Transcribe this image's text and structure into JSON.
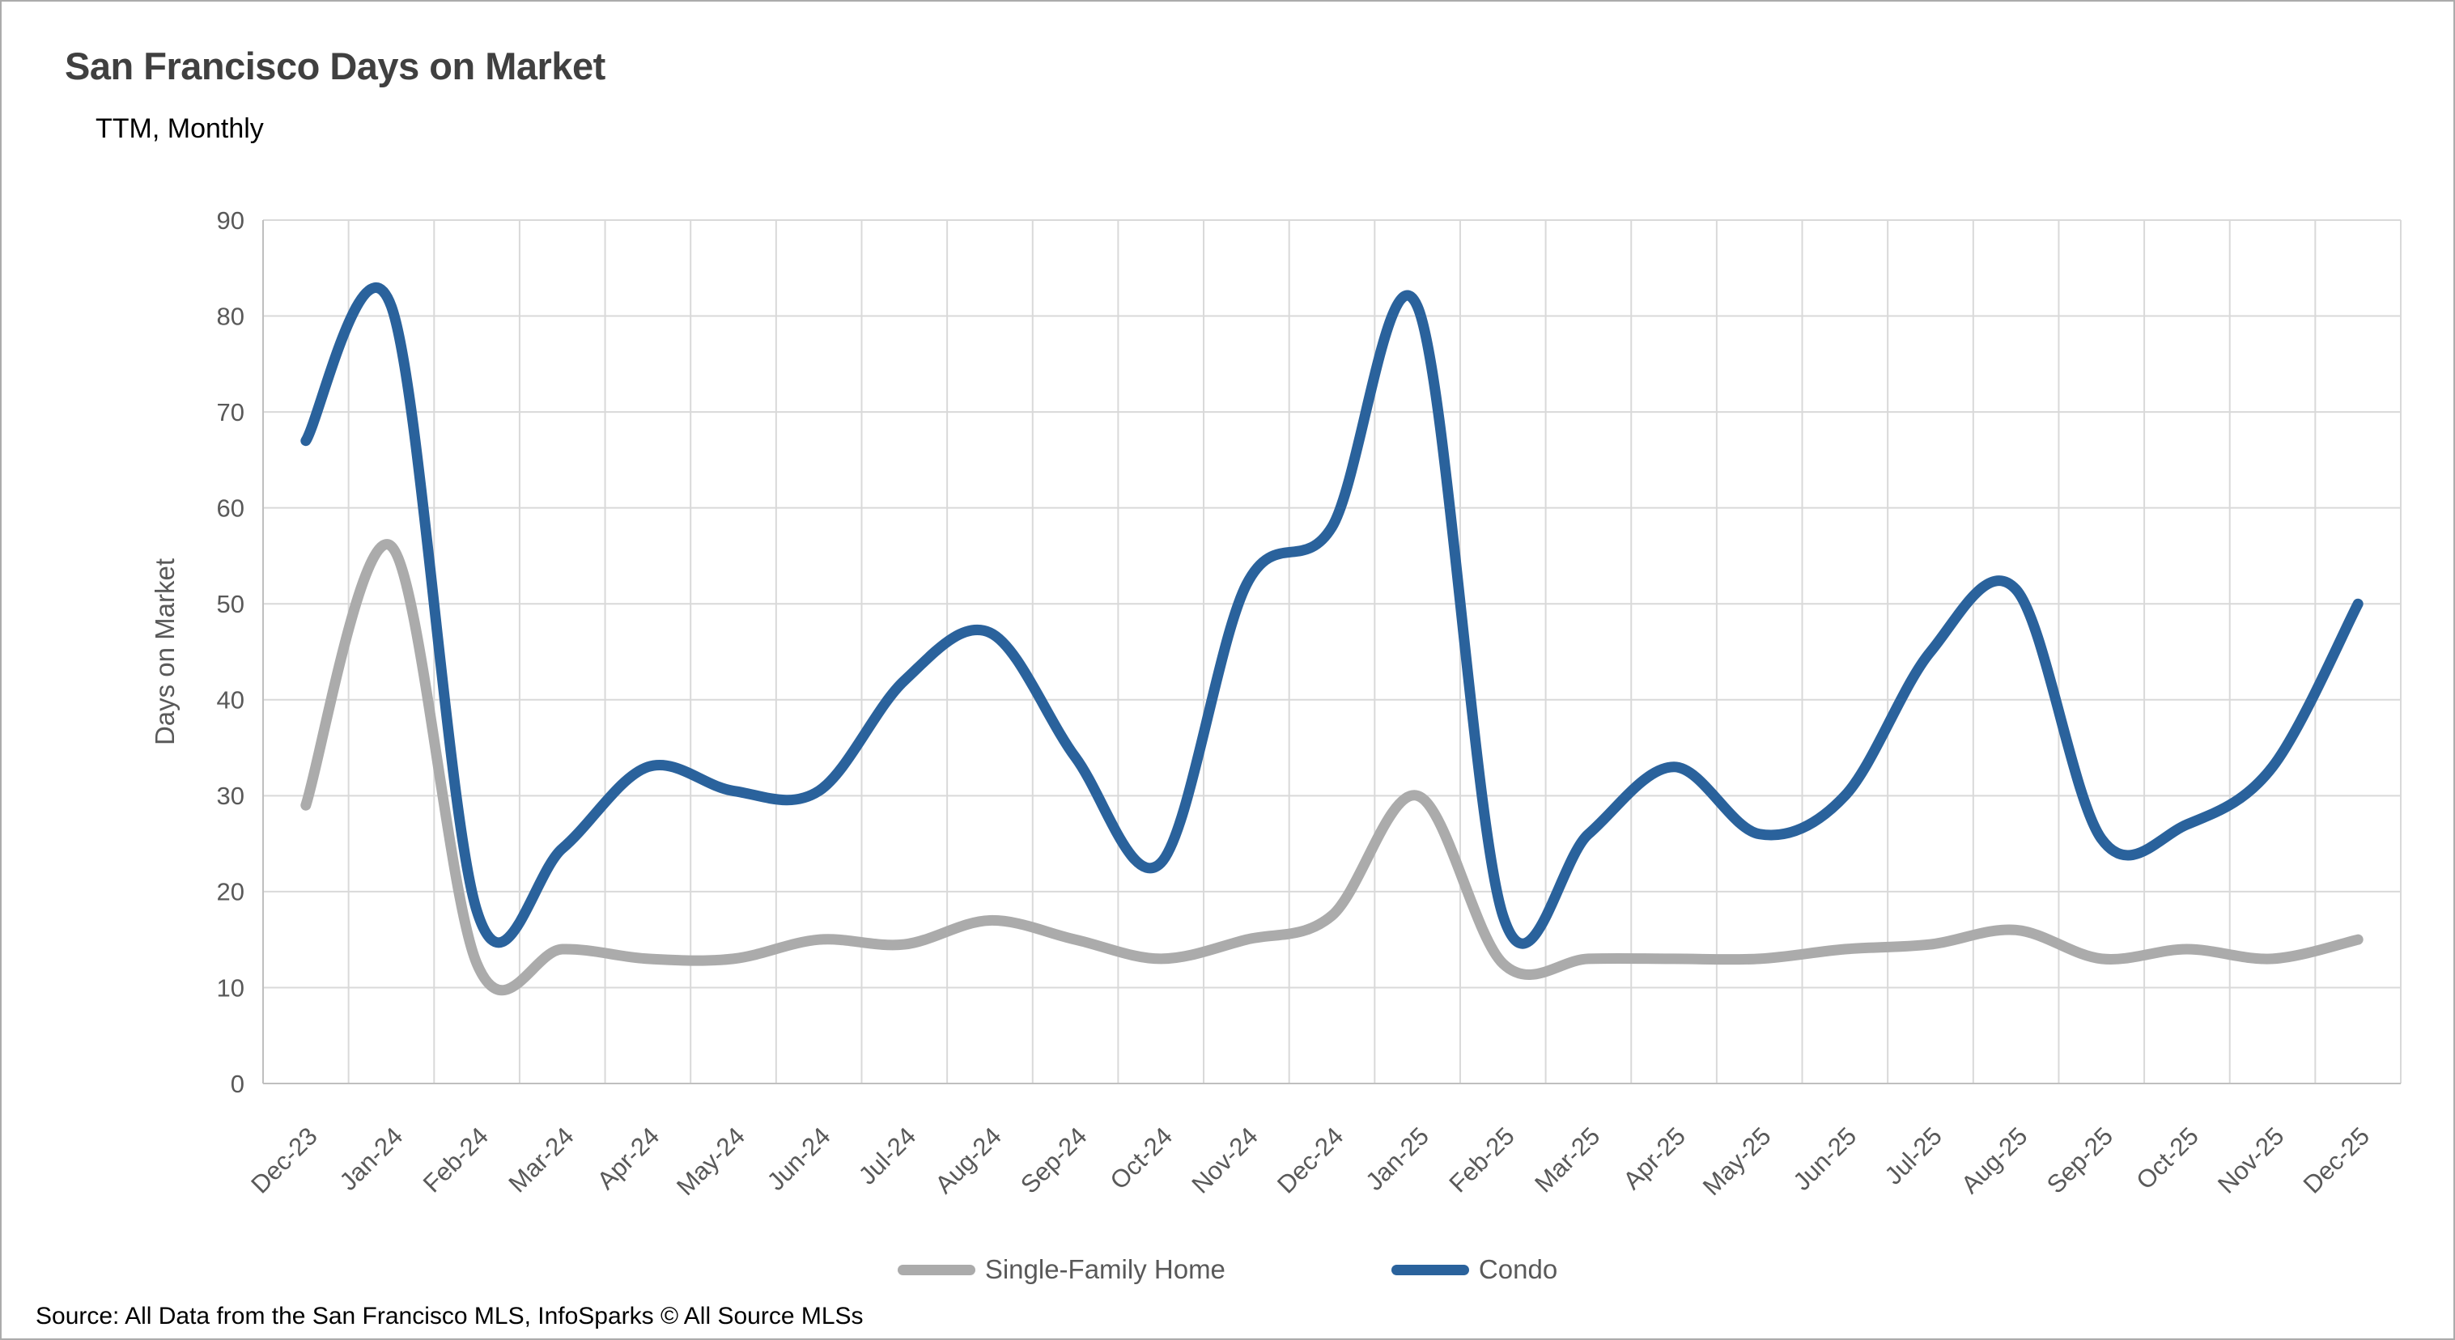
{
  "title": "San Francisco Days on Market",
  "subtitle": "TTM, Monthly",
  "source": "Source: All Data from the San Francisco MLS, InfoSparks © All Source MLSs",
  "legend": [
    {
      "label": "Single-Family Home",
      "color": "#ababab"
    },
    {
      "label": "Condo",
      "color": "#2a629c"
    }
  ],
  "chart_data": {
    "type": "line",
    "title": "San Francisco Days on Market",
    "subtitle": "TTM, Monthly",
    "xlabel": "",
    "ylabel": "Days on Market",
    "ylim": [
      0,
      90
    ],
    "ytick_step": 10,
    "grid": true,
    "smooth": true,
    "legend_position": "bottom",
    "grid_color": "#d9d9d9",
    "axis_color": "#bfbfbf",
    "tick_color": "#595959",
    "categories": [
      "Dec-23",
      "Jan-24",
      "Feb-24",
      "Mar-24",
      "Apr-24",
      "May-24",
      "Jun-24",
      "Jul-24",
      "Aug-24",
      "Sep-24",
      "Oct-24",
      "Nov-24",
      "Dec-24",
      "Jan-25",
      "Feb-25",
      "Mar-25",
      "Apr-25",
      "May-25",
      "Jun-25",
      "Jul-25",
      "Aug-25",
      "Sep-25",
      "Oct-25",
      "Nov-25",
      "Dec-25"
    ],
    "series": [
      {
        "name": "Single-Family Home",
        "color": "#ababab",
        "values": [
          29,
          56,
          12.5,
          14,
          13,
          13,
          15,
          14.5,
          17,
          15,
          13,
          15,
          17.5,
          30,
          12.5,
          13,
          13,
          13,
          14,
          14.5,
          16,
          13,
          14,
          13,
          15
        ]
      },
      {
        "name": "Condo",
        "color": "#2a629c",
        "values": [
          67,
          81,
          18,
          24.5,
          33,
          30.5,
          30.5,
          42,
          47,
          34,
          23,
          52,
          58,
          81,
          17.5,
          26,
          33,
          26,
          30,
          45,
          51.5,
          25.5,
          27,
          33,
          50
        ]
      }
    ]
  }
}
